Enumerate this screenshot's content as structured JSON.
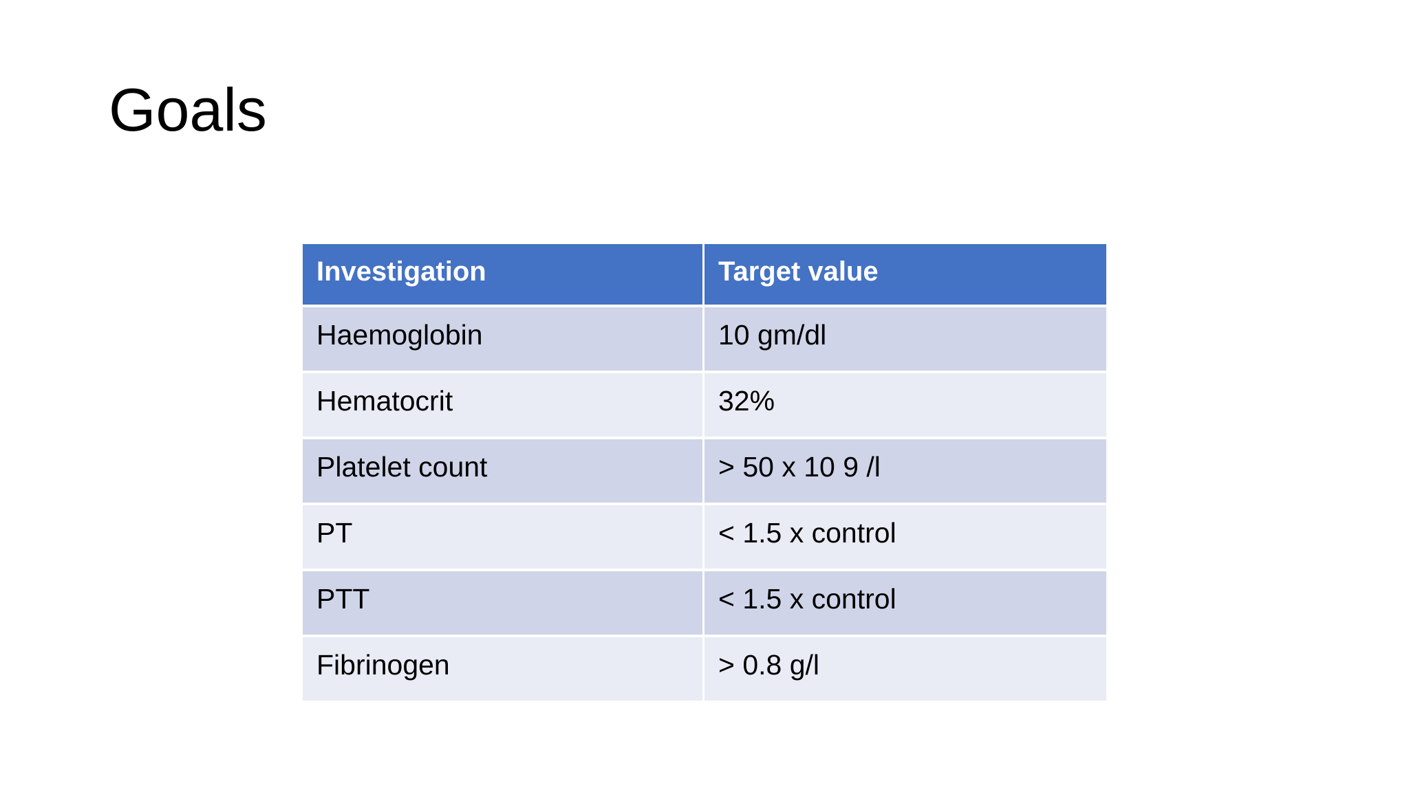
{
  "slide": {
    "title": "Goals",
    "table": {
      "header": {
        "investigation_label": "Investigation",
        "target_label": "Target value"
      },
      "rows": [
        {
          "investigation": "Haemoglobin",
          "target": "10 gm/dl"
        },
        {
          "investigation": "Hematocrit",
          "target": "32%"
        },
        {
          "investigation": "Platelet count",
          "target": "> 50 x 10 9 /l"
        },
        {
          "investigation": "PT",
          "target": "< 1.5 x control"
        },
        {
          "investigation": "PTT",
          "target": "< 1.5 x control"
        },
        {
          "investigation": "Fibrinogen",
          "target": "> 0.8 g/l"
        }
      ]
    },
    "colors": {
      "background": "#FFFFFF",
      "header_bg": "#4472C4",
      "header_text": "#FFFFFF",
      "row_band_dark": "#CFD4E8",
      "row_band_light": "#E9EBF5",
      "body_text": "#000000"
    }
  }
}
